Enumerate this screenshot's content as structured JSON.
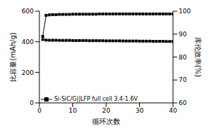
{
  "chart_data": {
    "type": "line",
    "x_label": "循环次数",
    "y_label": "比容量(mAh/g)",
    "y2_label": "库伦效率(%)",
    "x": [
      1,
      2,
      3,
      4,
      5,
      6,
      7,
      8,
      9,
      10,
      11,
      12,
      13,
      14,
      15,
      16,
      17,
      18,
      19,
      20,
      21,
      22,
      23,
      24,
      25,
      26,
      27,
      28,
      29,
      30,
      31,
      32,
      33,
      34,
      35,
      36,
      37,
      38,
      39,
      40
    ],
    "xlim": [
      0,
      40
    ],
    "xticks": [
      0,
      10,
      20,
      30,
      40
    ],
    "ylim": [
      0,
      600
    ],
    "yticks": [
      0,
      200,
      400,
      600
    ],
    "y2lim": [
      60,
      100
    ],
    "y2ticks": [
      60,
      70,
      80,
      90,
      100
    ],
    "legend": "lower left",
    "series": [
      {
        "name": "Si-SiC/G||LFP full cell 3.4-1.6V",
        "color": "#000000",
        "marker": "square",
        "values": [
          415,
          411,
          410,
          410,
          410,
          409,
          409,
          409,
          409,
          408,
          408,
          408,
          408,
          408,
          407,
          407,
          407,
          407,
          407,
          406,
          406,
          406,
          406,
          406,
          405,
          405,
          405,
          405,
          405,
          404,
          404,
          404,
          404,
          403,
          403,
          403,
          403,
          402,
          402,
          402
        ]
      },
      {
        "color": "#000000",
        "marker": "square",
        "axis": "y2",
        "values": [
          89,
          98.2,
          98.4,
          98.5,
          98.5,
          98.6,
          98.6,
          98.6,
          98.6,
          98.7,
          98.7,
          98.7,
          98.7,
          98.7,
          98.7,
          98.7,
          98.7,
          98.8,
          98.8,
          98.8,
          98.8,
          98.8,
          98.8,
          98.8,
          98.8,
          98.8,
          98.8,
          98.8,
          98.8,
          98.8,
          98.8,
          98.8,
          98.8,
          98.8,
          98.8,
          98.8,
          98.8,
          98.8,
          98.8,
          98.8
        ]
      }
    ]
  }
}
